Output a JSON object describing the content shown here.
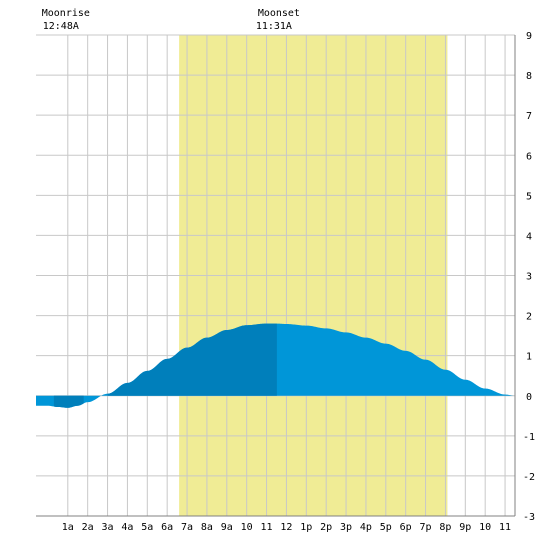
{
  "chart_data": {
    "type": "area",
    "title": "",
    "xlabel": "",
    "ylabel": "",
    "x_unit": "hour",
    "xlim": [
      -0.6,
      23.5
    ],
    "ylim": [
      -3,
      9
    ],
    "x_ticks": [
      {
        "hour": 1,
        "label": "1a"
      },
      {
        "hour": 2,
        "label": "2a"
      },
      {
        "hour": 3,
        "label": "3a"
      },
      {
        "hour": 4,
        "label": "4a"
      },
      {
        "hour": 5,
        "label": "5a"
      },
      {
        "hour": 6,
        "label": "6a"
      },
      {
        "hour": 7,
        "label": "7a"
      },
      {
        "hour": 8,
        "label": "8a"
      },
      {
        "hour": 9,
        "label": "9a"
      },
      {
        "hour": 10,
        "label": "10"
      },
      {
        "hour": 11,
        "label": "11"
      },
      {
        "hour": 12,
        "label": "12"
      },
      {
        "hour": 13,
        "label": "1p"
      },
      {
        "hour": 14,
        "label": "2p"
      },
      {
        "hour": 15,
        "label": "3p"
      },
      {
        "hour": 16,
        "label": "4p"
      },
      {
        "hour": 17,
        "label": "5p"
      },
      {
        "hour": 18,
        "label": "6p"
      },
      {
        "hour": 19,
        "label": "7p"
      },
      {
        "hour": 20,
        "label": "8p"
      },
      {
        "hour": 21,
        "label": "9p"
      },
      {
        "hour": 22,
        "label": "10"
      },
      {
        "hour": 23,
        "label": "11"
      }
    ],
    "y_ticks": [
      {
        "value": 9,
        "label": "9"
      },
      {
        "value": 8,
        "label": "8"
      },
      {
        "value": 7,
        "label": "7"
      },
      {
        "value": 6,
        "label": "6"
      },
      {
        "value": 5,
        "label": "5"
      },
      {
        "value": 4,
        "label": "4"
      },
      {
        "value": 3,
        "label": "3"
      },
      {
        "value": 2,
        "label": "2"
      },
      {
        "value": 1,
        "label": "1"
      },
      {
        "value": 0,
        "label": "0"
      },
      {
        "value": -1,
        "label": "-1"
      },
      {
        "value": -2,
        "label": "-2"
      },
      {
        "value": -3,
        "label": "-3"
      }
    ],
    "grid": true,
    "daylight": {
      "start_hour": 6.6,
      "end_hour": 20.1
    },
    "moon": [
      {
        "event": "Moonrise",
        "time": "12:48A",
        "hour": 0.8
      },
      {
        "event": "Moonset",
        "time": "11:31A",
        "hour": 11.52
      }
    ],
    "tide_series": {
      "hours": [
        -0.6,
        0,
        0.5,
        1,
        1.5,
        2,
        3,
        4,
        5,
        6,
        7,
        8,
        9,
        10,
        11,
        11.5,
        12,
        13,
        14,
        15,
        16,
        17,
        18,
        19,
        20,
        21,
        22,
        23,
        23.5
      ],
      "heights": [
        -0.25,
        -0.25,
        -0.28,
        -0.3,
        -0.25,
        -0.16,
        0.05,
        0.32,
        0.62,
        0.92,
        1.2,
        1.45,
        1.64,
        1.76,
        1.8,
        1.8,
        1.79,
        1.75,
        1.68,
        1.58,
        1.45,
        1.3,
        1.12,
        0.9,
        0.65,
        0.4,
        0.18,
        0.03,
        0.0
      ]
    },
    "dark_segments": [
      {
        "from_hour": 0.3,
        "to_hour": 1.8
      },
      {
        "from_hour": 3.0,
        "to_hour": 11.52
      }
    ],
    "colors": {
      "daylight": "#f0ec95",
      "tide": "#0096d8",
      "tide_dark": "#007fbb",
      "grid": "#c8c8c8",
      "axis": "#808080"
    }
  }
}
